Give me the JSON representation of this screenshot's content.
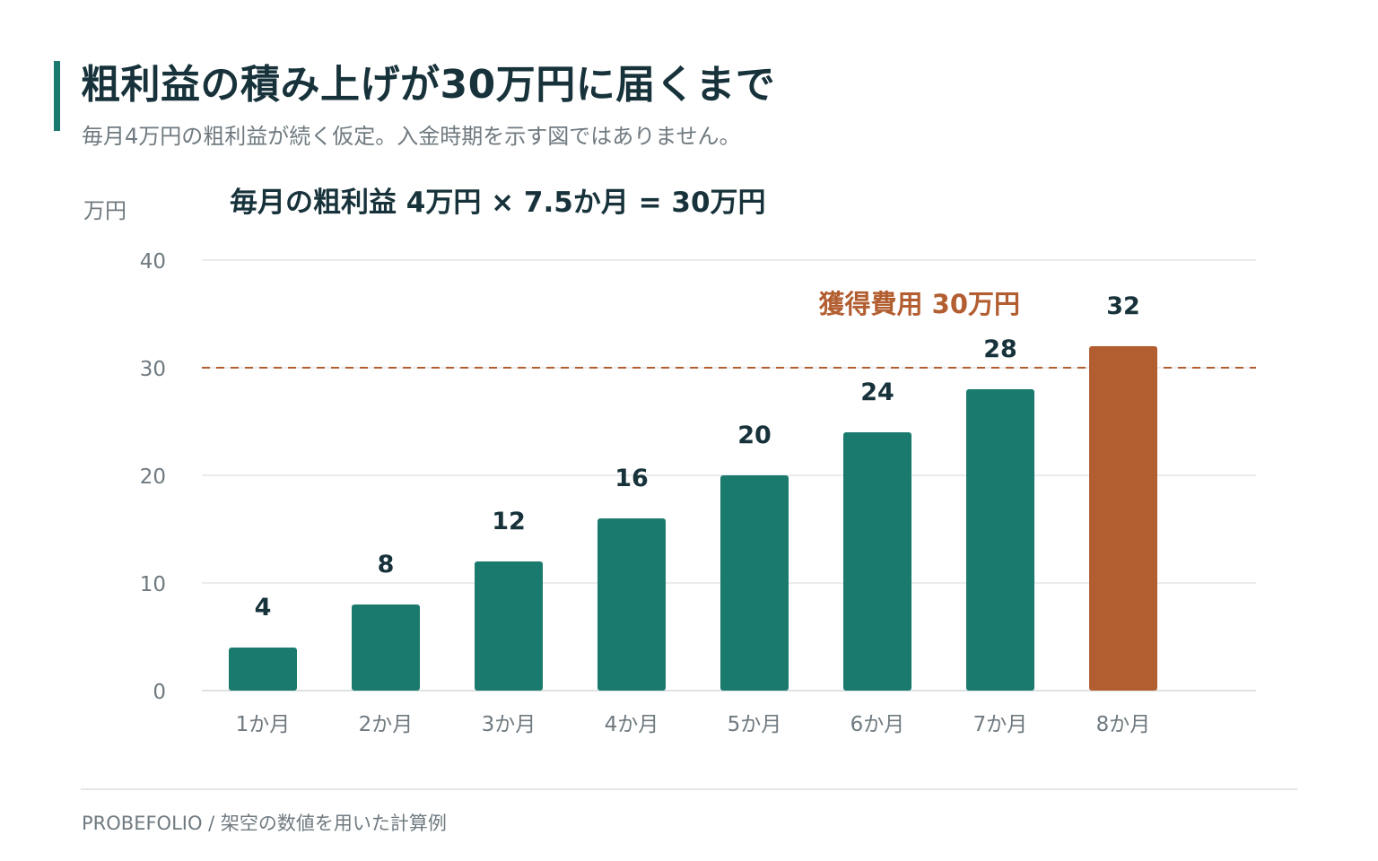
{
  "header": {
    "title": "粗利益の積み上げが30万円に届くまで",
    "subtitle": "毎月4万円の粗利益が続く仮定。入金時期を示す図ではありません。"
  },
  "colors": {
    "accent": "#1a7a6e",
    "highlight": "#b25e31",
    "text": "#17323a",
    "muted": "#6f7a80"
  },
  "chart_data": {
    "type": "bar",
    "ylabel": "万円",
    "annotation": "毎月の粗利益 4万円 × 7.5か月 = 30万円",
    "categories": [
      "1か月",
      "2か月",
      "3か月",
      "4か月",
      "5か月",
      "6か月",
      "7か月",
      "8か月"
    ],
    "values": [
      4,
      8,
      12,
      16,
      20,
      24,
      28,
      32
    ],
    "highlight_index": 7,
    "ylim": [
      0,
      40
    ],
    "yticks": [
      0,
      10,
      20,
      30,
      40
    ],
    "grid": true,
    "reference_line": {
      "value": 30,
      "label": "獲得費用 30万円",
      "style": "dashed"
    }
  },
  "footer": {
    "text": "PROBEFOLIO / 架空の数値を用いた計算例"
  }
}
